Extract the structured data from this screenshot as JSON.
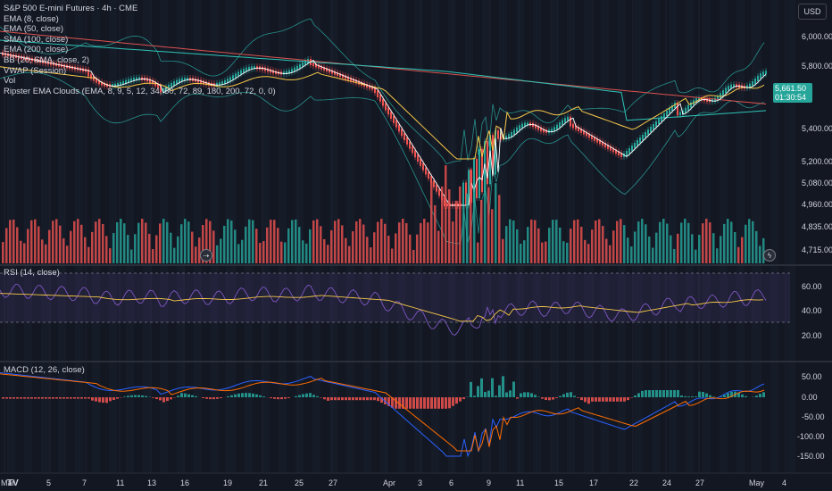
{
  "header": {
    "title": "S&P 500 E-mini Futures · 4h · CME",
    "currency": "USD"
  },
  "legend": {
    "items": [
      "EMA (8, close)",
      "EMA (50, close)",
      "SMA (100, close)",
      "EMA (200, close)",
      "BB (20, SMA, close, 2)",
      "VWAP (Session)",
      "Vol",
      "Ripster EMA Clouds (EMA, 8, 9, 5, 12, 34, 50, 72, 89, 180, 200, 72, 0, 0)"
    ]
  },
  "price_axis": {
    "ticks": [
      "6,000.00",
      "5,800.00",
      "5,400.00",
      "5,200.00",
      "5,080.00",
      "4,960.00",
      "4,835.00",
      "4,715.00"
    ],
    "last_price": "5,661.50",
    "countdown": "01:30:54"
  },
  "rsi_pane": {
    "title": "RSI (14, close)",
    "ticks": [
      "60.00",
      "40.00",
      "20.00"
    ]
  },
  "macd_pane": {
    "title": "MACD (12, 26, close)",
    "ticks": [
      "50.00",
      "0.00",
      "-50.00",
      "-100.00",
      "-150.00"
    ]
  },
  "time_axis": {
    "labels": [
      "Mar",
      "5",
      "7",
      "11",
      "13",
      "16",
      "19",
      "21",
      "25",
      "27",
      "Apr",
      "3",
      "6",
      "9",
      "11",
      "15",
      "17",
      "22",
      "24",
      "27",
      "May",
      "4"
    ]
  },
  "logo": "TV",
  "colors": {
    "background": "#131722",
    "up": "#26a69a",
    "down": "#ef5350",
    "ema8": "#ffffff",
    "ema50": "#f7c948",
    "sma100": "#d9534f",
    "ema200": "#ff7043",
    "bb": "#2ec4b6",
    "rsi": "#7e57c2",
    "rsi_ma": "#f7c948",
    "macd": "#2962ff",
    "signal": "#ff6d00"
  }
}
